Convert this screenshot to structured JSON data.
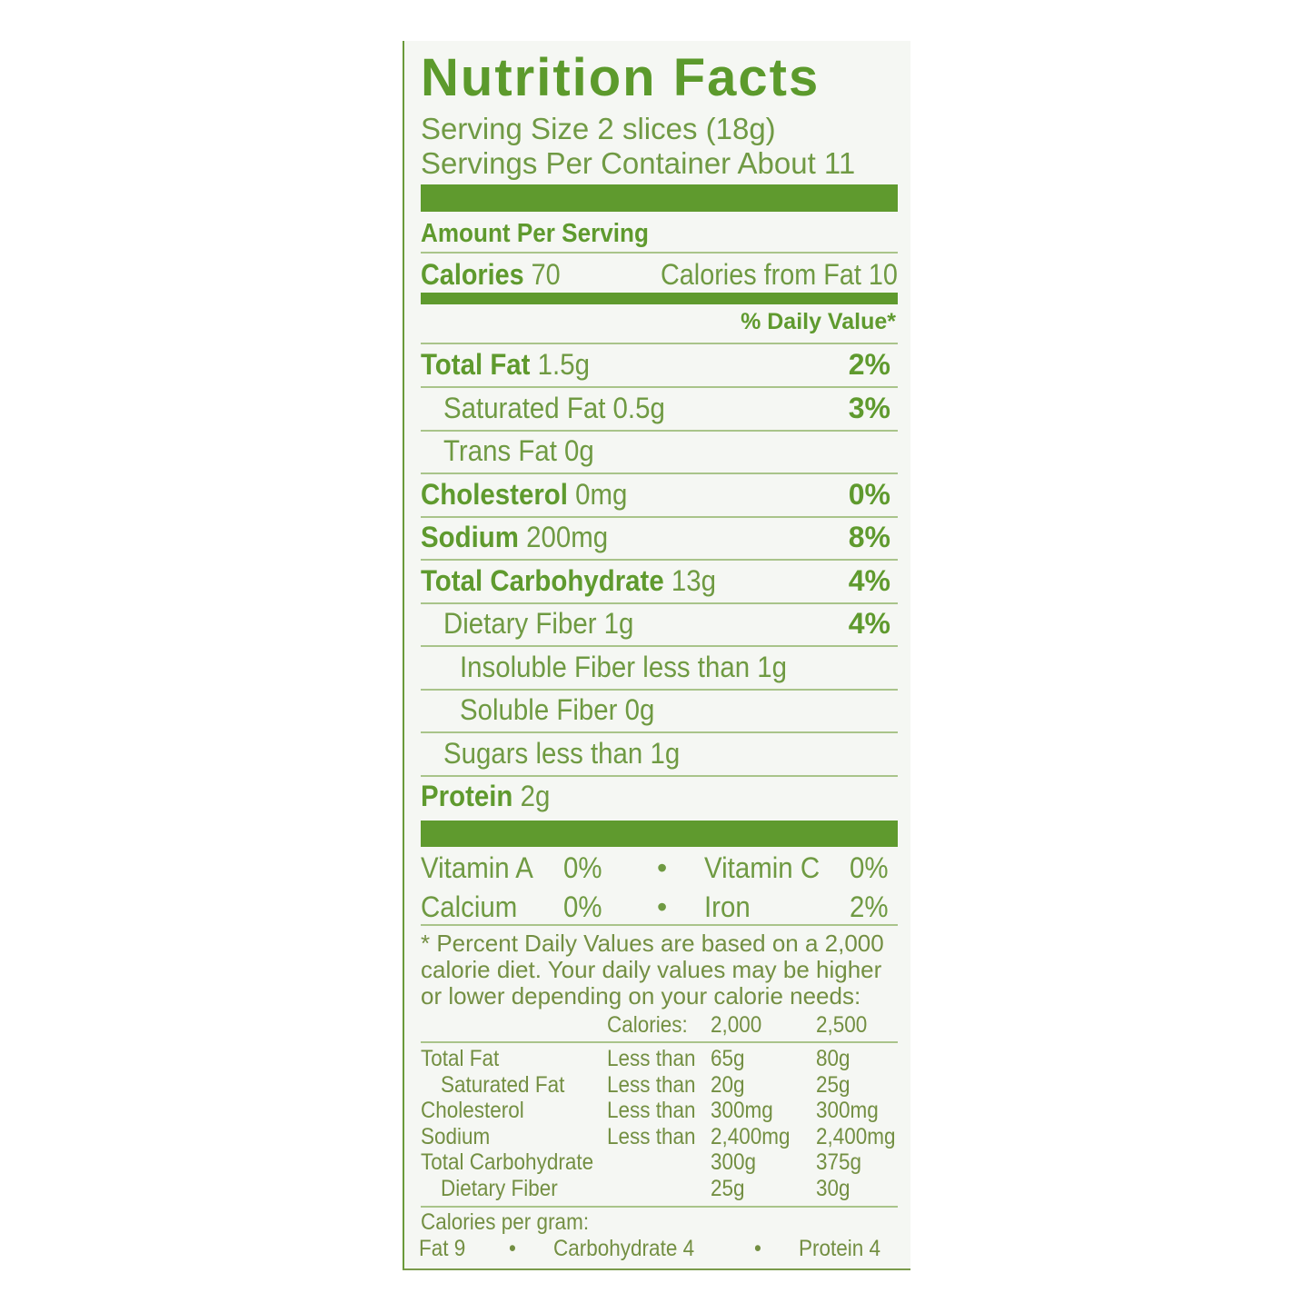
{
  "colors": {
    "title": "#5c9a2c",
    "text": "#6f8f3c",
    "bars": "#5f9a2e"
  },
  "title": "Nutrition Facts",
  "serving_size": "Serving Size 2 slices (18g)",
  "servings_per_container": "Servings Per Container About 11",
  "amount_per_serving": "Amount Per Serving",
  "calories": {
    "label": "Calories",
    "value": "70",
    "from_fat": "Calories from Fat 10"
  },
  "daily_value_header": "% Daily Value*",
  "nutrients": [
    {
      "label": "Total Fat",
      "amount": "1.5g",
      "dv": "2%",
      "bold": true,
      "indent": 0
    },
    {
      "label": "Saturated Fat",
      "amount": "0.5g",
      "dv": "3%",
      "bold": false,
      "indent": 1
    },
    {
      "label": "Trans Fat",
      "amount": "0g",
      "dv": "",
      "bold": false,
      "indent": 1
    },
    {
      "label": "Cholesterol",
      "amount": "0mg",
      "dv": "0%",
      "bold": true,
      "indent": 0
    },
    {
      "label": "Sodium",
      "amount": "200mg",
      "dv": "8%",
      "bold": true,
      "indent": 0
    },
    {
      "label": "Total Carbohydrate",
      "amount": "13g",
      "dv": "4%",
      "bold": true,
      "indent": 0
    },
    {
      "label": "Dietary Fiber",
      "amount": "1g",
      "dv": "4%",
      "bold": false,
      "indent": 1
    },
    {
      "label": "Insoluble Fiber",
      "amount": "less than 1g",
      "dv": "",
      "bold": false,
      "indent": 2
    },
    {
      "label": "Soluble Fiber",
      "amount": "0g",
      "dv": "",
      "bold": false,
      "indent": 2
    },
    {
      "label": "Sugars",
      "amount": "less than 1g",
      "dv": "",
      "bold": false,
      "indent": 1
    },
    {
      "label": "Protein",
      "amount": "2g",
      "dv": "",
      "bold": true,
      "indent": 0
    }
  ],
  "vitamins": [
    {
      "left_label": "Vitamin A",
      "left_value": "0%",
      "right_label": "Vitamin C",
      "right_value": "0%"
    },
    {
      "left_label": "Calcium",
      "left_value": "0%",
      "right_label": "Iron",
      "right_value": "2%"
    }
  ],
  "footnote": [
    "* Percent Daily Values are based on a 2,000",
    "calorie diet. Your daily values may be higher",
    "or lower depending on your calorie needs:"
  ],
  "dv_table": {
    "header": [
      "Calories:",
      "2,000",
      "2,500"
    ],
    "rows": [
      {
        "label": "Total Fat",
        "qual": "Less than",
        "v2000": "65g",
        "v2500": "80g",
        "indent": 0
      },
      {
        "label": "Saturated Fat",
        "qual": "Less than",
        "v2000": "20g",
        "v2500": "25g",
        "indent": 1
      },
      {
        "label": "Cholesterol",
        "qual": "Less than",
        "v2000": "300mg",
        "v2500": "300mg",
        "indent": 0
      },
      {
        "label": "Sodium",
        "qual": "Less than",
        "v2000": "2,400mg",
        "v2500": "2,400mg",
        "indent": 0
      },
      {
        "label": "Total Carbohydrate",
        "qual": "",
        "v2000": "300g",
        "v2500": "375g",
        "indent": 0
      },
      {
        "label": "Dietary Fiber",
        "qual": "",
        "v2000": "25g",
        "v2500": "30g",
        "indent": 1
      }
    ]
  },
  "calories_per_gram": {
    "label": "Calories per gram:",
    "fat": "Fat 9",
    "carb": "Carbohydrate 4",
    "protein": "Protein 4"
  }
}
